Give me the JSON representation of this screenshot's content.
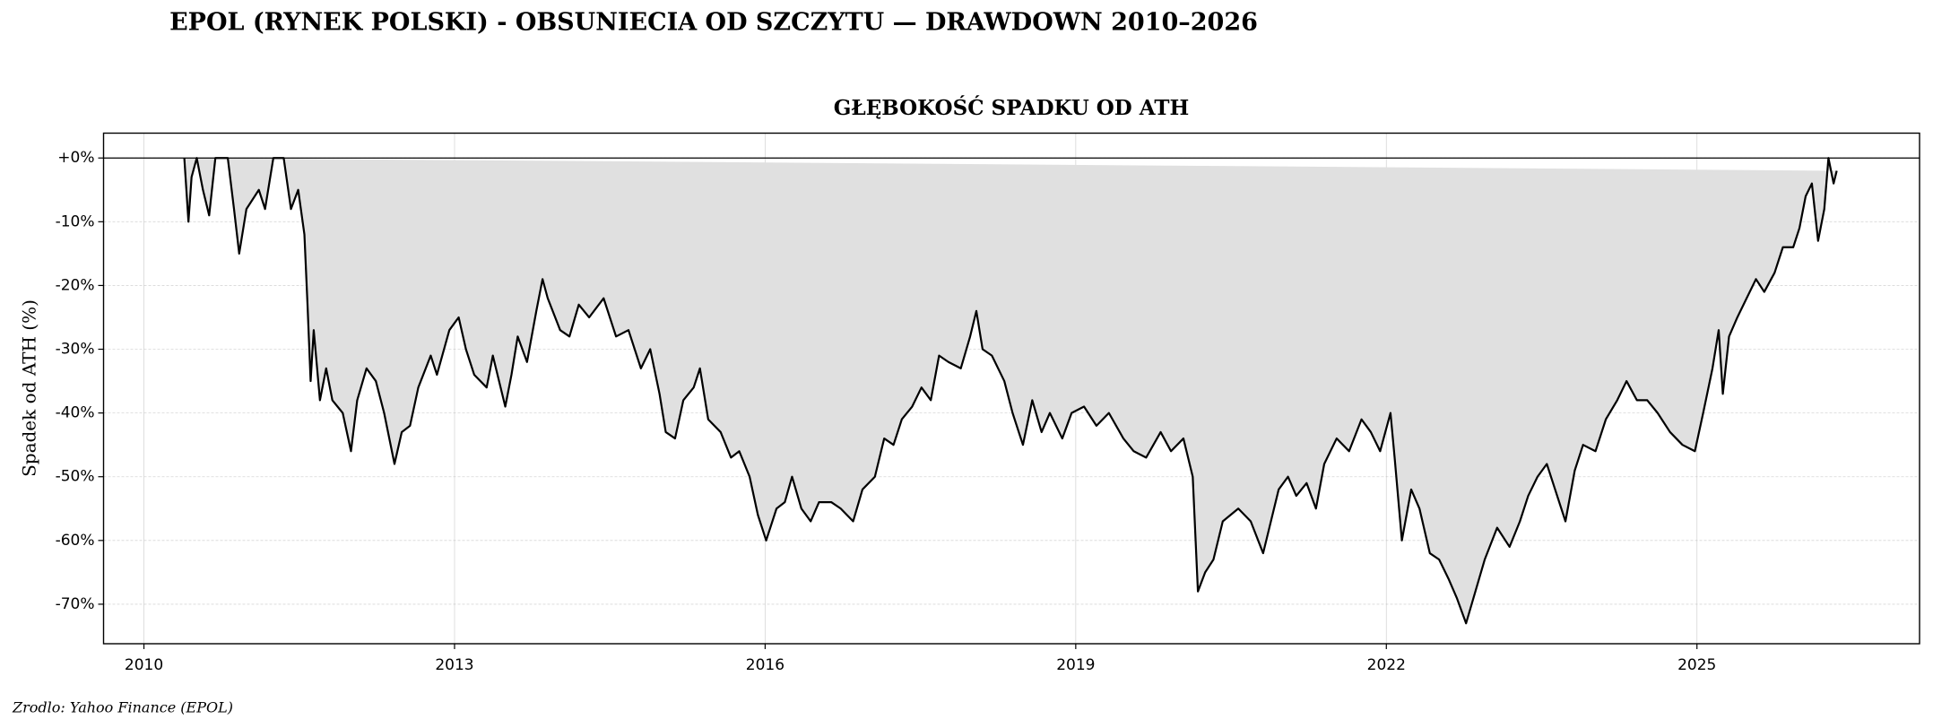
{
  "chart_data": {
    "type": "drawdown",
    "title": "EPOL (RYNEK POLSKI) - OBSUNIECIA OD SZCZYTU — DRAWDOWN 2010–2026",
    "subtitle": "GŁĘBOKOŚĆ SPADKU OD ATH",
    "y_label": "Spadek od ATH (%)",
    "source": "Zrodlo: Yahoo Finance (EPOL)",
    "color": "#000000",
    "fill_color": "#e0e0e0",
    "grid": true,
    "xlim": [
      2009.61,
      2027.15
    ],
    "ylim": [
      -76.2,
      3.9
    ],
    "xticks": [
      2010,
      2013,
      2016,
      2019,
      2022,
      2025
    ],
    "yticks": [
      {
        "value": 0,
        "label": "+0%"
      },
      {
        "value": -10,
        "label": "-10%"
      },
      {
        "value": -20,
        "label": "-20%"
      },
      {
        "value": -30,
        "label": "-30%"
      },
      {
        "value": -40,
        "label": "-40%"
      },
      {
        "value": -50,
        "label": "-50%"
      },
      {
        "value": -60,
        "label": "-60%"
      },
      {
        "value": -70,
        "label": "-70%"
      }
    ],
    "x": [
      2010.39,
      2010.43,
      2010.46,
      2010.51,
      2010.57,
      2010.63,
      2010.69,
      2010.81,
      2010.87,
      2010.92,
      2010.99,
      2011.11,
      2011.17,
      2011.25,
      2011.35,
      2011.42,
      2011.49,
      2011.55,
      2011.58,
      2011.61,
      2011.64,
      2011.7,
      2011.76,
      2011.82,
      2011.92,
      2012.0,
      2012.06,
      2012.15,
      2012.24,
      2012.32,
      2012.42,
      2012.49,
      2012.57,
      2012.65,
      2012.77,
      2012.83,
      2012.95,
      2013.04,
      2013.11,
      2013.19,
      2013.31,
      2013.37,
      2013.49,
      2013.55,
      2013.61,
      2013.7,
      2013.79,
      2013.85,
      2013.9,
      2014.02,
      2014.11,
      2014.2,
      2014.3,
      2014.44,
      2014.56,
      2014.68,
      2014.8,
      2014.89,
      2014.98,
      2015.04,
      2015.13,
      2015.21,
      2015.31,
      2015.37,
      2015.45,
      2015.57,
      2015.67,
      2015.75,
      2015.85,
      2015.93,
      2016.01,
      2016.11,
      2016.19,
      2016.26,
      2016.35,
      2016.44,
      2016.52,
      2016.64,
      2016.73,
      2016.85,
      2016.94,
      2017.06,
      2017.15,
      2017.24,
      2017.32,
      2017.42,
      2017.51,
      2017.6,
      2017.68,
      2017.77,
      2017.89,
      2017.98,
      2018.04,
      2018.1,
      2018.19,
      2018.31,
      2018.39,
      2018.49,
      2018.58,
      2018.67,
      2018.75,
      2018.87,
      2018.96,
      2019.08,
      2019.2,
      2019.32,
      2019.46,
      2019.56,
      2019.68,
      2019.82,
      2019.92,
      2020.04,
      2020.13,
      2020.18,
      2020.25,
      2020.33,
      2020.42,
      2020.57,
      2020.69,
      2020.81,
      2020.87,
      2020.96,
      2021.05,
      2021.13,
      2021.23,
      2021.32,
      2021.4,
      2021.52,
      2021.64,
      2021.76,
      2021.85,
      2021.94,
      2022.04,
      2022.08,
      2022.15,
      2022.24,
      2022.32,
      2022.42,
      2022.51,
      2022.6,
      2022.68,
      2022.77,
      2022.86,
      2022.95,
      2023.07,
      2023.19,
      2023.29,
      2023.37,
      2023.46,
      2023.55,
      2023.63,
      2023.73,
      2023.82,
      2023.9,
      2024.02,
      2024.12,
      2024.23,
      2024.32,
      2024.42,
      2024.52,
      2024.62,
      2024.74,
      2024.86,
      2024.98,
      2025.06,
      2025.15,
      2025.21,
      2025.25,
      2025.31,
      2025.39,
      2025.48,
      2025.57,
      2025.65,
      2025.75,
      2025.83,
      2025.93,
      2025.99,
      2026.05,
      2026.11,
      2026.17,
      2026.23,
      2026.27,
      2026.32,
      2026.35
    ],
    "values": [
      0,
      -10,
      -3,
      0,
      -5,
      -9,
      0,
      0,
      -8,
      -15,
      -8,
      -5,
      -8,
      0,
      0,
      -8,
      -5,
      -12,
      -23,
      -35,
      -27,
      -38,
      -33,
      -38,
      -40,
      -46,
      -38,
      -33,
      -35,
      -40,
      -48,
      -43,
      -42,
      -36,
      -31,
      -34,
      -27,
      -25,
      -30,
      -34,
      -36,
      -31,
      -39,
      -34,
      -28,
      -32,
      -24,
      -19,
      -22,
      -27,
      -28,
      -23,
      -25,
      -22,
      -28,
      -27,
      -33,
      -30,
      -37,
      -43,
      -44,
      -38,
      -36,
      -33,
      -41,
      -43,
      -47,
      -46,
      -50,
      -56,
      -60,
      -55,
      -54,
      -50,
      -55,
      -57,
      -54,
      -54,
      -55,
      -57,
      -52,
      -50,
      -44,
      -45,
      -41,
      -39,
      -36,
      -38,
      -31,
      -32,
      -33,
      -28,
      -24,
      -30,
      -31,
      -35,
      -40,
      -45,
      -38,
      -43,
      -40,
      -44,
      -40,
      -39,
      -42,
      -40,
      -44,
      -46,
      -47,
      -43,
      -46,
      -44,
      -50,
      -68,
      -65,
      -63,
      -57,
      -55,
      -57,
      -62,
      -58,
      -52,
      -50,
      -53,
      -51,
      -55,
      -48,
      -44,
      -46,
      -41,
      -43,
      -46,
      -40,
      -47,
      -60,
      -52,
      -55,
      -62,
      -63,
      -66,
      -69,
      -73,
      -68,
      -63,
      -58,
      -61,
      -57,
      -53,
      -50,
      -48,
      -52,
      -57,
      -49,
      -45,
      -46,
      -41,
      -38,
      -35,
      -38,
      -38,
      -40,
      -43,
      -45,
      -46,
      -40,
      -33,
      -27,
      -37,
      -28,
      -25,
      -22,
      -19,
      -21,
      -18,
      -14,
      -14,
      -11,
      -6,
      -4,
      -13,
      -8,
      0,
      -4,
      -2
    ]
  }
}
